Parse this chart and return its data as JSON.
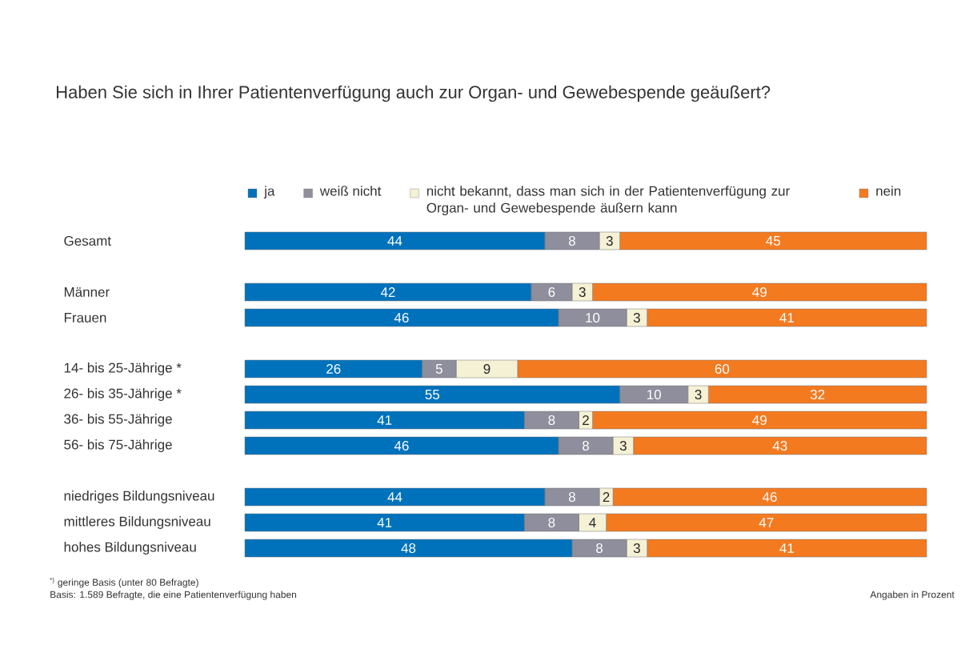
{
  "chart_data": {
    "type": "bar",
    "orientation": "horizontal",
    "stacked": true,
    "data_labels": true,
    "legend": "top",
    "tick_labels": "y",
    "title": "Haben Sie sich in Ihrer Patientenverfügung auch zur Organ- und Gewebespende geäußert?",
    "categories": [
      "Gesamt",
      null,
      "Männer",
      "Frauen",
      null,
      "14- bis 25-Jährige *",
      "26- bis 35-Jährige *",
      "36- bis 55-Jährige",
      "56- bis 75-Jährige",
      null,
      "niedriges Bildungsniveau",
      "mittleres Bildungsniveau",
      "hohes Bildungsniveau"
    ],
    "series": [
      {
        "name": "ja",
        "color": "#0072bc",
        "values": [
          44,
          null,
          42,
          46,
          null,
          26,
          55,
          41,
          46,
          null,
          44,
          41,
          48
        ]
      },
      {
        "name": "weiß nicht",
        "color": "#8e8e9c",
        "values": [
          8,
          null,
          6,
          10,
          null,
          5,
          10,
          8,
          8,
          null,
          8,
          8,
          8
        ]
      },
      {
        "name": "nicht bekannt, dass man sich in der Patientenverfügung zur Organ- und Gewebespende äußern kann",
        "color": "#f5f1d5",
        "values": [
          3,
          null,
          3,
          3,
          null,
          9,
          3,
          2,
          3,
          null,
          2,
          4,
          3
        ]
      },
      {
        "name": "nein",
        "color": "#f47a20",
        "values": [
          45,
          null,
          49,
          41,
          null,
          60,
          32,
          49,
          43,
          null,
          46,
          47,
          41
        ]
      }
    ],
    "annotations": [
      "$^{*)}$ geringe Basis (unter 80 Befragte)",
      "Basis: 1.589 Befragte, die eine Patientenverfügung haben",
      "Angaben in Prozent"
    ]
  }
}
